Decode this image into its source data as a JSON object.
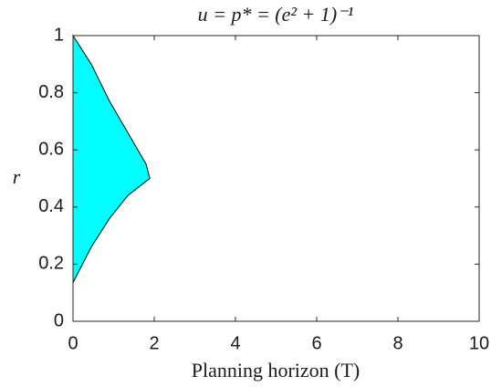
{
  "chart_data": {
    "type": "area",
    "title": "u = p* = (e² + 1)⁻¹",
    "x_label": "Planning horizon (T)",
    "y_label": "r",
    "x": [
      0,
      0.45,
      0.9,
      1.35,
      1.8,
      1.89
    ],
    "upper": [
      1,
      0.9,
      0.77,
      0.66,
      0.55,
      0.5
    ],
    "lower": [
      0.135,
      0.26,
      0.36,
      0.44,
      0.49,
      0.5
    ],
    "color": "#00ffff",
    "xlim": [
      0,
      10
    ],
    "xticks": [
      0,
      2,
      4,
      6,
      8,
      10
    ],
    "ylim": [
      0,
      1
    ],
    "yticks": [
      0,
      0.2,
      0.4,
      0.6,
      0.8,
      1
    ]
  }
}
